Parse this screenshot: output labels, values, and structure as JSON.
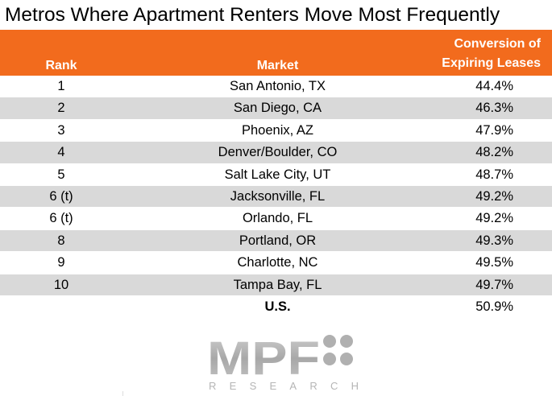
{
  "title": "Metros Where Apartment Renters Move Most Frequently",
  "header": {
    "rank": "Rank",
    "market": "Market",
    "conversion_line1": "Conversion of",
    "conversion_line2": "Expiring Leases"
  },
  "colors": {
    "header_bg": "#f26b1d",
    "row_shade": "#d9d9d9",
    "logo_gray": "#b5b5b5"
  },
  "rows": [
    {
      "rank": "1",
      "market": "San Antonio, TX",
      "value": "44.4%"
    },
    {
      "rank": "2",
      "market": "San Diego, CA",
      "value": "46.3%"
    },
    {
      "rank": "3",
      "market": "Phoenix, AZ",
      "value": "47.9%"
    },
    {
      "rank": "4",
      "market": "Denver/Boulder, CO",
      "value": "48.2%"
    },
    {
      "rank": "5",
      "market": "Salt Lake City, UT",
      "value": "48.7%"
    },
    {
      "rank": "6 (t)",
      "market": "Jacksonville, FL",
      "value": "49.2%"
    },
    {
      "rank": "6 (t)",
      "market": "Orlando, FL",
      "value": "49.2%"
    },
    {
      "rank": "8",
      "market": "Portland, OR",
      "value": "49.3%"
    },
    {
      "rank": "9",
      "market": "Charlotte, NC",
      "value": "49.5%"
    },
    {
      "rank": "10",
      "market": "Tampa Bay, FL",
      "value": "49.7%"
    }
  ],
  "total": {
    "rank": "",
    "market": "U.S.",
    "value": "50.9%"
  },
  "logo": {
    "main": "MPF",
    "sub": "RESEARCH"
  }
}
